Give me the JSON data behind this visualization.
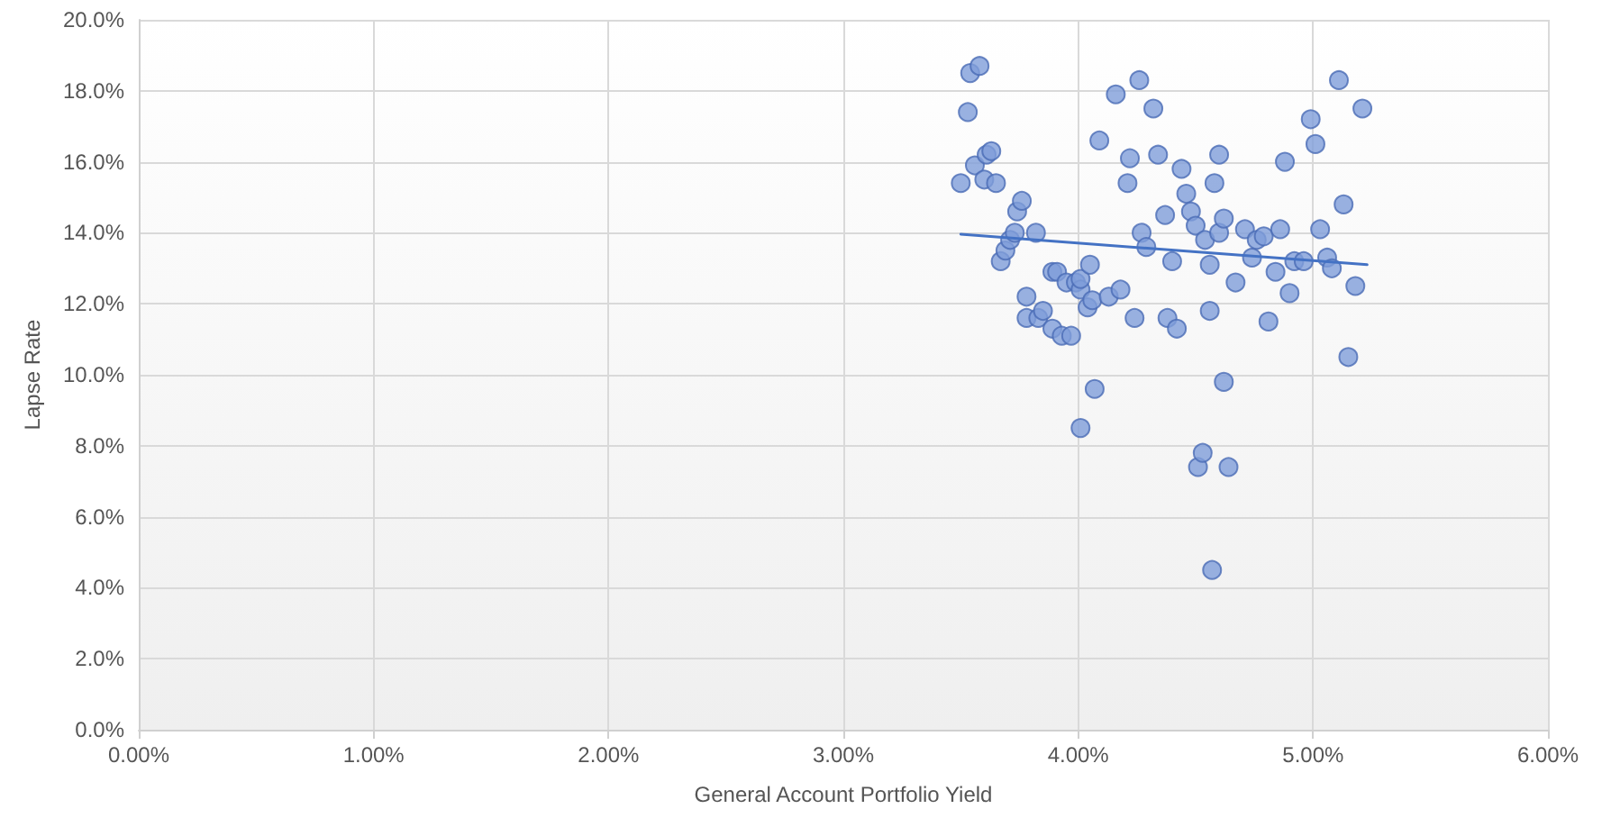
{
  "chart_data": {
    "type": "scatter",
    "xlabel": "General Account Portfolio Yield",
    "ylabel": "Lapse Rate",
    "xlim": [
      0,
      6
    ],
    "ylim": [
      0,
      20
    ],
    "xticks": [
      {
        "value": 0,
        "label": "0.00%"
      },
      {
        "value": 1,
        "label": "1.00%"
      },
      {
        "value": 2,
        "label": "2.00%"
      },
      {
        "value": 3,
        "label": "3.00%"
      },
      {
        "value": 4,
        "label": "4.00%"
      },
      {
        "value": 5,
        "label": "5.00%"
      },
      {
        "value": 6,
        "label": "6.00%"
      }
    ],
    "yticks": [
      {
        "value": 0,
        "label": "0.0%"
      },
      {
        "value": 2,
        "label": "2.0%"
      },
      {
        "value": 4,
        "label": "4.0%"
      },
      {
        "value": 6,
        "label": "6.0%"
      },
      {
        "value": 8,
        "label": "8.0%"
      },
      {
        "value": 10,
        "label": "10.0%"
      },
      {
        "value": 12,
        "label": "12.0%"
      },
      {
        "value": 14,
        "label": "14.0%"
      },
      {
        "value": 16,
        "label": "16.0%"
      },
      {
        "value": 18,
        "label": "18.0%"
      },
      {
        "value": 20,
        "label": "20.0%"
      }
    ],
    "grid": true,
    "marker": "circle",
    "series": [
      {
        "color": "#7f9ed9",
        "x": [
          3.5,
          3.53,
          3.54,
          3.58,
          3.56,
          3.6,
          3.61,
          3.63,
          3.65,
          3.67,
          3.69,
          3.71,
          3.73,
          3.74,
          3.76,
          3.82,
          3.78,
          3.78,
          3.83,
          3.85,
          3.89,
          3.91,
          3.89,
          3.93,
          3.97,
          3.95,
          3.99,
          4.01,
          4.01,
          4.04,
          4.06,
          4.05,
          4.01,
          4.07,
          4.09,
          4.13,
          4.18,
          4.16,
          4.21,
          4.22,
          4.24,
          4.26,
          4.27,
          4.29,
          4.32,
          4.34,
          4.37,
          4.38,
          4.4,
          4.42,
          4.44,
          4.46,
          4.48,
          4.5,
          4.51,
          4.53,
          4.54,
          4.56,
          4.56,
          4.58,
          4.6,
          4.6,
          4.62,
          4.62,
          4.57,
          4.64,
          4.67,
          4.71,
          4.74,
          4.76,
          4.79,
          4.81,
          4.84,
          4.86,
          4.88,
          4.9,
          4.92,
          4.96,
          4.99,
          5.01,
          5.03,
          5.06,
          5.08,
          5.11,
          5.13,
          5.15,
          5.18,
          5.21
        ],
        "values": [
          15.4,
          17.4,
          18.5,
          18.7,
          15.9,
          15.5,
          16.2,
          16.3,
          15.4,
          13.2,
          13.5,
          13.8,
          14.0,
          14.6,
          14.9,
          14.0,
          12.2,
          11.6,
          11.6,
          11.8,
          12.9,
          12.9,
          11.3,
          11.1,
          11.1,
          12.6,
          12.6,
          12.4,
          12.7,
          11.9,
          12.1,
          13.1,
          8.5,
          9.6,
          16.6,
          12.2,
          12.4,
          17.9,
          15.4,
          16.1,
          11.6,
          18.3,
          14.0,
          13.6,
          17.5,
          16.2,
          14.5,
          11.6,
          13.2,
          11.3,
          15.8,
          15.1,
          14.6,
          14.2,
          7.4,
          7.8,
          13.8,
          13.1,
          11.8,
          15.4,
          14.0,
          16.2,
          9.8,
          14.4,
          4.5,
          7.4,
          12.6,
          14.1,
          13.3,
          13.8,
          13.9,
          11.5,
          12.9,
          14.1,
          16.0,
          12.3,
          13.2,
          13.2,
          17.2,
          16.5,
          14.1,
          13.3,
          13.0,
          18.3,
          14.8,
          10.5,
          12.5,
          17.5
        ]
      },
      {
        "type": "line",
        "color": "#4472c4",
        "marker": "none",
        "x": [
          3.5,
          5.23
        ],
        "values": [
          13.96,
          13.1
        ]
      }
    ]
  }
}
